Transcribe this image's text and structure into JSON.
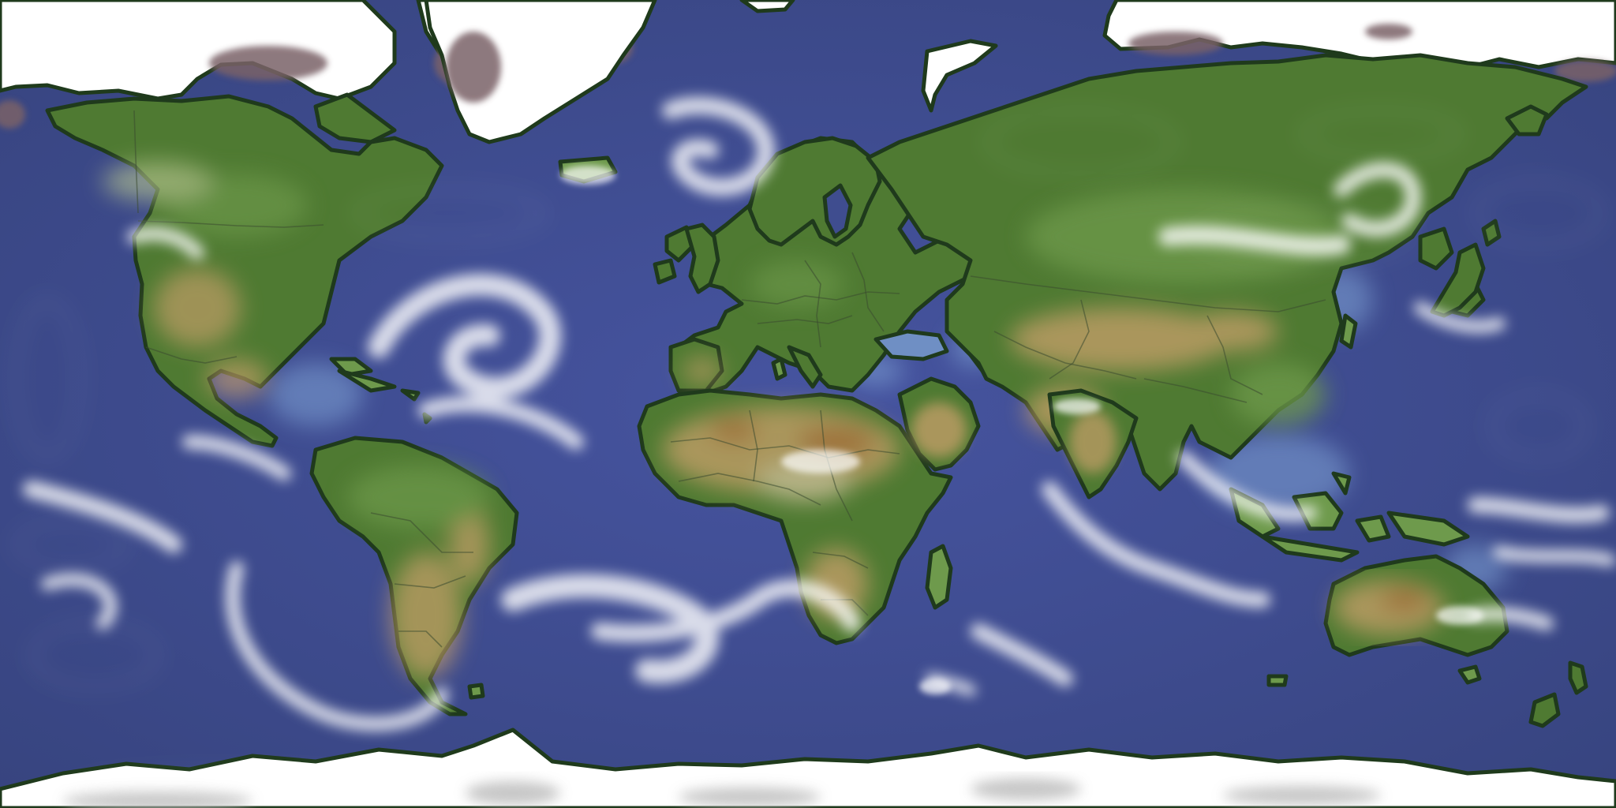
{
  "map": {
    "style": "illustrated-world-map-equirectangular",
    "colors": {
      "ocean": "#3f4d8f",
      "ocean_shallow": "#6f8fc4",
      "land": "#4f7a32",
      "land_light": "#6e9a4c",
      "desert": "#c9a06a",
      "desert_dark": "#b86f3e",
      "ice": "#ffffff",
      "ice_shadow": "#b9b9b9",
      "mountain": "#7a6268",
      "coastline": "#1f3a1c",
      "cloud": "#ffffff"
    },
    "regions": [
      "north-america",
      "greenland",
      "central-america",
      "south-america",
      "europe",
      "africa",
      "asia",
      "australia",
      "antarctica",
      "arctic-ice"
    ]
  }
}
